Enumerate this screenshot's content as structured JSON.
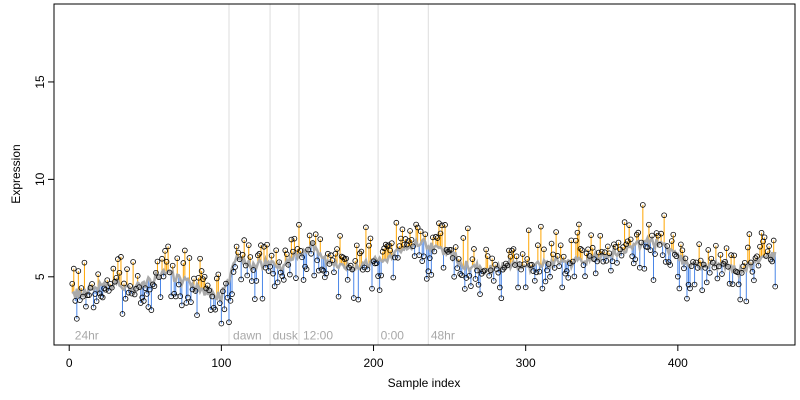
{
  "chart_data": {
    "type": "scatter",
    "xlabel": "Sample index",
    "ylabel": "Expression",
    "xlim": [
      -10,
      477
    ],
    "ylim": [
      1.5,
      19
    ],
    "x_ticks": [
      0,
      100,
      200,
      300,
      400
    ],
    "y_ticks": [
      5,
      10,
      15
    ],
    "vlines": [
      105,
      132,
      151,
      203,
      236
    ],
    "annotations": [
      {
        "text": "24hr",
        "x": 3
      },
      {
        "text": "dawn",
        "x": 107
      },
      {
        "text": "dusk",
        "x": 133
      },
      {
        "text": "12:00",
        "x": 153
      },
      {
        "text": "0:00",
        "x": 204
      },
      {
        "text": "48hr",
        "x": 237
      }
    ],
    "annotation_y": 2.0,
    "colors": {
      "points_edge": "#000000",
      "up": "#ffa500",
      "down": "#4a86e8",
      "fit": "#aaaaaa",
      "vline": "#dddddd"
    },
    "fit_x": [
      2,
      10,
      20,
      30,
      40,
      50,
      60,
      70,
      80,
      90,
      100,
      110,
      120,
      130,
      140,
      150,
      160,
      170,
      180,
      190,
      200,
      210,
      220,
      230,
      240,
      250,
      260,
      270,
      280,
      290,
      300,
      310,
      320,
      330,
      340,
      350,
      360,
      370,
      380,
      390,
      400,
      410,
      420,
      430,
      440,
      450,
      460
    ],
    "fit_y": [
      4.1,
      4.2,
      4.5,
      4.7,
      4.4,
      4.6,
      5.2,
      5.0,
      4.6,
      4.2,
      4.0,
      5.8,
      5.6,
      5.7,
      5.6,
      6.2,
      6.6,
      5.8,
      5.4,
      5.6,
      5.8,
      6.0,
      6.5,
      6.8,
      6.5,
      6.2,
      5.6,
      5.4,
      5.5,
      5.7,
      5.4,
      5.6,
      5.8,
      5.7,
      5.9,
      6.1,
      6.3,
      6.5,
      6.8,
      6.6,
      6.0,
      5.6,
      5.5,
      5.6,
      5.3,
      5.7,
      6.1
    ],
    "noise_seed": 7,
    "n_points": 463
  }
}
